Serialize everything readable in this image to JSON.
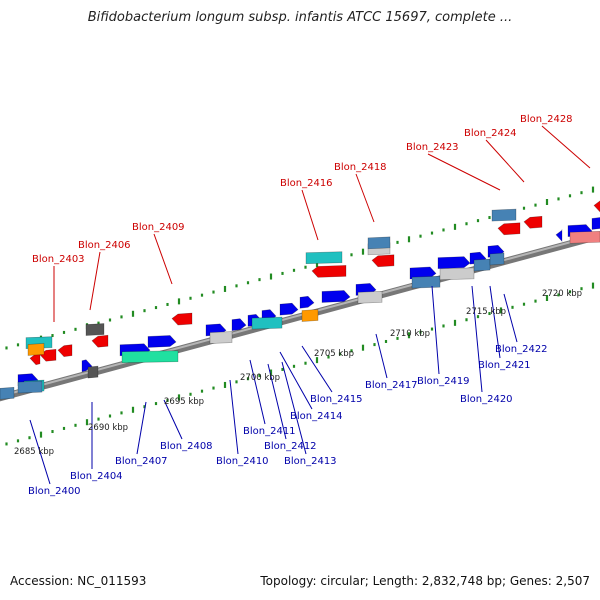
{
  "title": "Bifidobacterium longum subsp. infantis ATCC 15697, complete ...",
  "footer": {
    "accession": "Accession: NC_011593",
    "summary": "Topology: circular; Length: 2,832,748 bp; Genes: 2,507"
  },
  "ticks": [
    "2685 kbp",
    "2690 kbp",
    "2695 kbp",
    "2700 kbp",
    "2705 kbp",
    "2710 kbp",
    "2715 kbp",
    "2720 kbp"
  ],
  "labels_upper": [
    "Blon_2403",
    "Blon_2406",
    "Blon_2409",
    "Blon_2416",
    "Blon_2418",
    "Blon_2423",
    "Blon_2424",
    "Blon_2428"
  ],
  "labels_lower": [
    "Blon_2400",
    "Blon_2404",
    "Blon_2407",
    "Blon_2408",
    "Blon_2410",
    "Blon_2411",
    "Blon_2412",
    "Blon_2413",
    "Blon_2414",
    "Blon_2415",
    "Blon_2417",
    "Blon_2419",
    "Blon_2420",
    "Blon_2421",
    "Blon_2422"
  ],
  "colors": {
    "upper_label": "#cc0000",
    "lower_label": "#0000aa",
    "backbone": "#888888",
    "dots": "#228b22",
    "cds_forward": "#0000ee",
    "cds_reverse": "#ee0000",
    "rna": "#20c0c0",
    "gene_orange": "#ff9900",
    "gene_gray": "#555555",
    "gene_light": "#cccccc",
    "gene_steel": "#4682b4",
    "gene_mint": "#20e0a0",
    "gene_pink": "#f08080"
  }
}
